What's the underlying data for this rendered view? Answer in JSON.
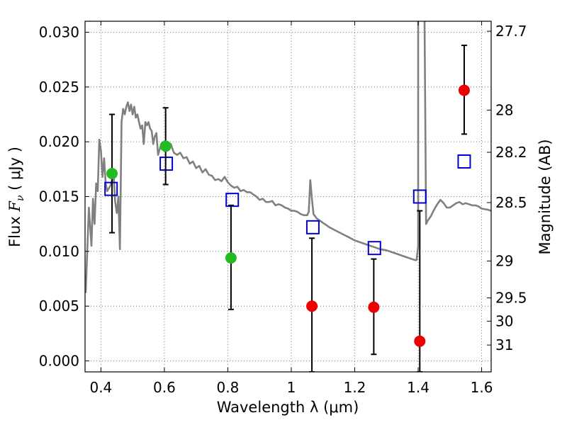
{
  "chart_data": {
    "type": "scatter",
    "xlabel": "Wavelength  λ (μm)",
    "ylabel_prefix": "Flux  ",
    "ylabel_symbol": "F",
    "ylabel_sub": "ν",
    "ylabel_unit": "  ( μJy )",
    "ylabel_right": "Magnitude (AB)",
    "xlim": [
      0.35,
      1.63
    ],
    "ylim": [
      -0.001,
      0.031
    ],
    "x_ticks": [
      0.4,
      0.6,
      0.8,
      1.0,
      1.2,
      1.4,
      1.6
    ],
    "x_tick_labels": [
      "0.4",
      "0.6",
      "0.8",
      "1",
      "1.2",
      "1.4",
      "1.6"
    ],
    "y_ticks": [
      0.0,
      0.005,
      0.01,
      0.015,
      0.02,
      0.025,
      0.03
    ],
    "y_tick_labels": [
      "0.000",
      "0.005",
      "0.010",
      "0.015",
      "0.020",
      "0.025",
      "0.030"
    ],
    "right_ticks": [
      {
        "label": "27.7",
        "flux": 0.03009
      },
      {
        "label": "28",
        "flux": 0.02289
      },
      {
        "label": "28.2",
        "flux": 0.01904
      },
      {
        "label": "28.5",
        "flux": 0.01445
      },
      {
        "label": "29",
        "flux": 0.00912
      },
      {
        "label": "29.5",
        "flux": 0.00575
      },
      {
        "label": "30",
        "flux": 0.00363
      },
      {
        "label": "31",
        "flux": 0.00145
      }
    ],
    "grid": true,
    "series": [
      {
        "kind": "line",
        "color": "#808080",
        "x": [
          0.352,
          0.362,
          0.37,
          0.375,
          0.38,
          0.385,
          0.39,
          0.395,
          0.4,
          0.405,
          0.41,
          0.415,
          0.42,
          0.43,
          0.44,
          0.445,
          0.45,
          0.455,
          0.46,
          0.465,
          0.47,
          0.475,
          0.48,
          0.485,
          0.49,
          0.495,
          0.5,
          0.505,
          0.51,
          0.515,
          0.52,
          0.525,
          0.53,
          0.535,
          0.54,
          0.545,
          0.55,
          0.555,
          0.56,
          0.565,
          0.57,
          0.575,
          0.58,
          0.59,
          0.6,
          0.61,
          0.62,
          0.63,
          0.64,
          0.65,
          0.66,
          0.67,
          0.68,
          0.69,
          0.7,
          0.71,
          0.72,
          0.73,
          0.74,
          0.75,
          0.76,
          0.77,
          0.78,
          0.79,
          0.8,
          0.81,
          0.82,
          0.83,
          0.84,
          0.85,
          0.86,
          0.87,
          0.88,
          0.89,
          0.9,
          0.91,
          0.92,
          0.93,
          0.94,
          0.95,
          0.96,
          0.97,
          0.98,
          0.99,
          1.0,
          1.01,
          1.02,
          1.03,
          1.04,
          1.05,
          1.055,
          1.06,
          1.065,
          1.07,
          1.075,
          1.08,
          1.09,
          1.1,
          1.12,
          1.14,
          1.16,
          1.18,
          1.2,
          1.22,
          1.24,
          1.26,
          1.28,
          1.3,
          1.32,
          1.34,
          1.36,
          1.38,
          1.39,
          1.395,
          1.4,
          1.4,
          1.41,
          1.42,
          1.425,
          1.43,
          1.44,
          1.45,
          1.46,
          1.47,
          1.48,
          1.49,
          1.5,
          1.51,
          1.52,
          1.53,
          1.54,
          1.55,
          1.56,
          1.57,
          1.58,
          1.59,
          1.6,
          1.62,
          1.63
        ],
        "y": [
          0.0062,
          0.014,
          0.0105,
          0.0148,
          0.0125,
          0.0162,
          0.0155,
          0.0202,
          0.0192,
          0.0168,
          0.0185,
          0.0162,
          0.0155,
          0.016,
          0.017,
          0.0145,
          0.0135,
          0.015,
          0.0102,
          0.0218,
          0.023,
          0.0225,
          0.0232,
          0.0236,
          0.0228,
          0.0234,
          0.0225,
          0.0232,
          0.0222,
          0.0225,
          0.0218,
          0.0212,
          0.0215,
          0.0198,
          0.0218,
          0.0215,
          0.0218,
          0.0212,
          0.021,
          0.0198,
          0.0205,
          0.0208,
          0.0188,
          0.0198,
          0.0196,
          0.0192,
          0.0198,
          0.019,
          0.0188,
          0.019,
          0.0185,
          0.0186,
          0.018,
          0.0182,
          0.0176,
          0.0178,
          0.0172,
          0.0175,
          0.017,
          0.0169,
          0.0165,
          0.0166,
          0.0164,
          0.0168,
          0.0163,
          0.016,
          0.0158,
          0.0159,
          0.0155,
          0.0156,
          0.0154,
          0.0154,
          0.0152,
          0.015,
          0.0147,
          0.0148,
          0.0145,
          0.0145,
          0.0146,
          0.0142,
          0.0143,
          0.0142,
          0.014,
          0.0139,
          0.0137,
          0.0137,
          0.0136,
          0.0134,
          0.0133,
          0.0133,
          0.0136,
          0.0165,
          0.0148,
          0.0134,
          0.0132,
          0.013,
          0.0128,
          0.0126,
          0.0122,
          0.0119,
          0.0116,
          0.0113,
          0.011,
          0.0108,
          0.0106,
          0.0104,
          0.0102,
          0.0101,
          0.0099,
          0.0097,
          0.0095,
          0.0093,
          0.0092,
          0.0092,
          0.0105,
          0.0312,
          0.0312,
          0.0312,
          0.0125,
          0.0128,
          0.0132,
          0.0138,
          0.0143,
          0.0147,
          0.0144,
          0.014,
          0.014,
          0.0142,
          0.0144,
          0.0145,
          0.0143,
          0.0144,
          0.0143,
          0.0142,
          0.0142,
          0.0141,
          0.0139,
          0.0138,
          0.0137
        ]
      },
      {
        "kind": "points",
        "marker": "open-square",
        "color": "#0000cc",
        "x": [
          0.432,
          0.606,
          0.814,
          1.068,
          1.262,
          1.405,
          1.545
        ],
        "y": [
          0.0157,
          0.018,
          0.0147,
          0.0122,
          0.0103,
          0.015,
          0.0182
        ]
      },
      {
        "kind": "points",
        "marker": "filled-circle",
        "color": "#22bb22",
        "x": [
          0.435,
          0.604,
          0.81
        ],
        "y": [
          0.0171,
          0.0196,
          0.0094
        ],
        "yerr_low": [
          0.0117,
          0.0161,
          0.0047
        ],
        "yerr_high": [
          0.0225,
          0.0231,
          0.0142
        ]
      },
      {
        "kind": "points",
        "marker": "filled-circle",
        "color": "#ee0000",
        "x": [
          1.065,
          1.26,
          1.405,
          1.545
        ],
        "y": [
          0.005,
          0.0049,
          0.0018,
          0.0247
        ],
        "yerr_low": [
          -0.001,
          0.0006,
          -0.001,
          0.0207
        ],
        "yerr_high": [
          0.0112,
          0.0093,
          0.0137,
          0.0288
        ]
      }
    ]
  }
}
